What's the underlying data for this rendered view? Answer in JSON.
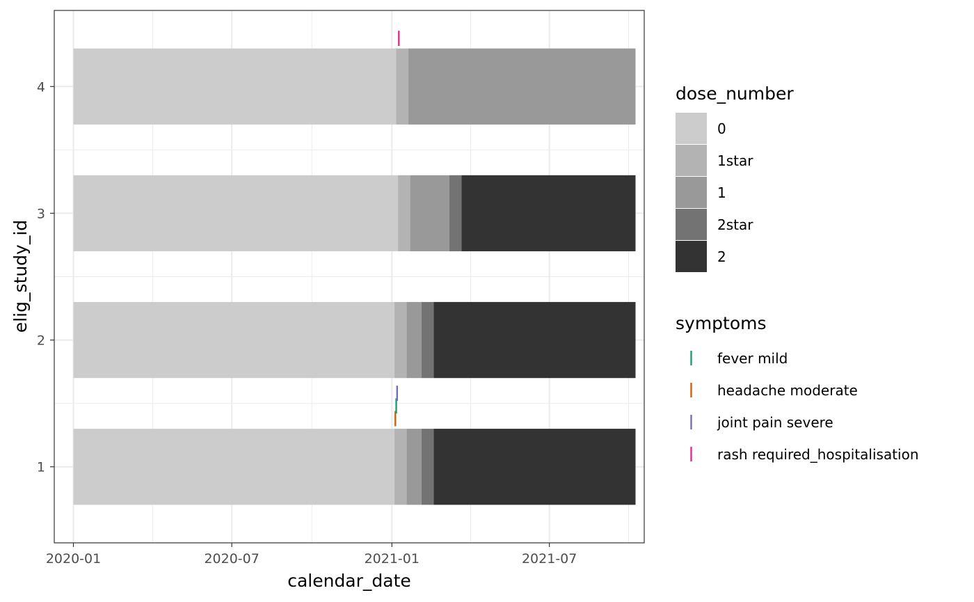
{
  "chart_data": {
    "type": "gantt",
    "xlabel": "calendar_date",
    "ylabel": "elig_study_id",
    "x_ticks": [
      "2020-01",
      "2020-07",
      "2021-01",
      "2021-07"
    ],
    "x_range": [
      "2019-12-10",
      "2021-10-18"
    ],
    "y_categories": [
      "1",
      "2",
      "3",
      "4"
    ],
    "grid": true,
    "legend_position": "right",
    "dose_legend": {
      "title": "dose_number",
      "levels": [
        {
          "label": "0",
          "color": "#CCCCCC"
        },
        {
          "label": "1star",
          "color": "#B3B3B3"
        },
        {
          "label": "1",
          "color": "#999999"
        },
        {
          "label": "2star",
          "color": "#737373"
        },
        {
          "label": "2",
          "color": "#333333"
        }
      ]
    },
    "symptom_legend": {
      "title": "symptoms",
      "levels": [
        {
          "label": "fever mild",
          "color": "#1B9E77"
        },
        {
          "label": "headache moderate",
          "color": "#D95F02"
        },
        {
          "label": "joint pain severe",
          "color": "#7570B3"
        },
        {
          "label": "rash required_hospitalisation",
          "color": "#E7298A"
        }
      ]
    },
    "series": [
      {
        "id": "1",
        "segments": [
          {
            "dose": "0",
            "start": "2020-01-01",
            "end": "2021-01-04"
          },
          {
            "dose": "1star",
            "start": "2021-01-04",
            "end": "2021-01-18"
          },
          {
            "dose": "1",
            "start": "2021-01-18",
            "end": "2021-02-04"
          },
          {
            "dose": "2star",
            "start": "2021-02-04",
            "end": "2021-02-18"
          },
          {
            "dose": "2",
            "start": "2021-02-18",
            "end": "2021-10-08"
          }
        ]
      },
      {
        "id": "2",
        "segments": [
          {
            "dose": "0",
            "start": "2020-01-01",
            "end": "2021-01-04"
          },
          {
            "dose": "1star",
            "start": "2021-01-04",
            "end": "2021-01-18"
          },
          {
            "dose": "1",
            "start": "2021-01-18",
            "end": "2021-02-04"
          },
          {
            "dose": "2star",
            "start": "2021-02-04",
            "end": "2021-02-18"
          },
          {
            "dose": "2",
            "start": "2021-02-18",
            "end": "2021-10-08"
          }
        ]
      },
      {
        "id": "3",
        "segments": [
          {
            "dose": "0",
            "start": "2020-01-01",
            "end": "2021-01-08"
          },
          {
            "dose": "1star",
            "start": "2021-01-08",
            "end": "2021-01-22"
          },
          {
            "dose": "1",
            "start": "2021-01-22",
            "end": "2021-03-08"
          },
          {
            "dose": "2star",
            "start": "2021-03-08",
            "end": "2021-03-22"
          },
          {
            "dose": "2",
            "start": "2021-03-22",
            "end": "2021-10-08"
          }
        ]
      },
      {
        "id": "4",
        "segments": [
          {
            "dose": "0",
            "start": "2020-01-01",
            "end": "2021-01-06"
          },
          {
            "dose": "1star",
            "start": "2021-01-06",
            "end": "2021-01-20"
          },
          {
            "dose": "1",
            "start": "2021-01-20",
            "end": "2021-10-08"
          }
        ]
      }
    ],
    "symptoms": [
      {
        "id": "1",
        "symptom": "headache moderate",
        "date": "2021-01-05",
        "level": 1
      },
      {
        "id": "1",
        "symptom": "fever mild",
        "date": "2021-01-06",
        "level": 2
      },
      {
        "id": "1",
        "symptom": "joint pain severe",
        "date": "2021-01-07",
        "level": 3
      },
      {
        "id": "4",
        "symptom": "rash required_hospitalisation",
        "date": "2021-01-09",
        "level": 4
      }
    ]
  }
}
